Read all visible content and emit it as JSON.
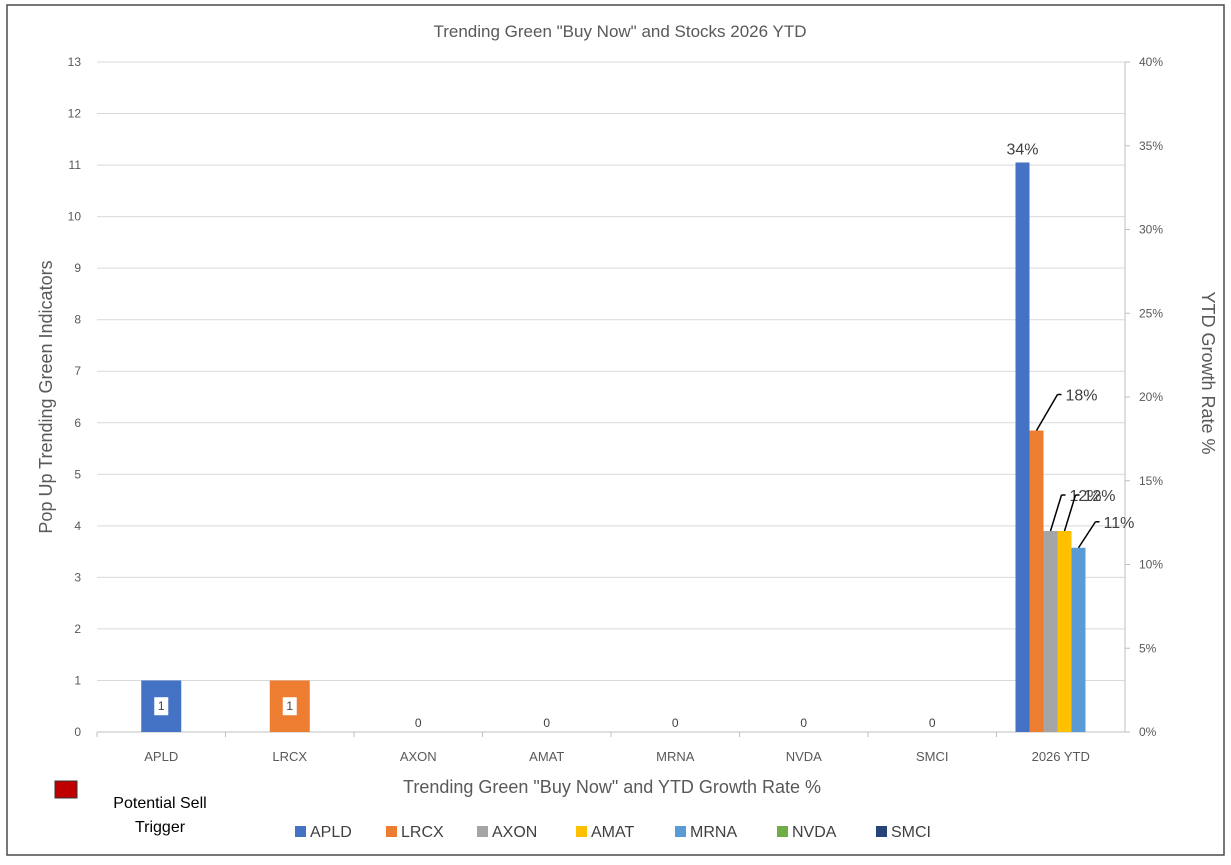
{
  "chart_data": {
    "type": "bar",
    "title": "Trending Green \"Buy Now\" and Stocks 2026 YTD",
    "xlabel": "Trending Green \"Buy Now\" and YTD Growth Rate %",
    "ylabel": "Pop Up Trending Green Indicators",
    "y2label": "YTD Growth Rate %",
    "ylim": [
      0,
      13
    ],
    "y2lim": [
      0,
      40
    ],
    "y_ticks": [
      "0",
      "1",
      "2",
      "3",
      "4",
      "5",
      "6",
      "7",
      "8",
      "9",
      "10",
      "11",
      "12",
      "13"
    ],
    "y2_ticks": [
      "0%",
      "5%",
      "10%",
      "15%",
      "20%",
      "25%",
      "30%",
      "35%",
      "40%"
    ],
    "grid": true,
    "categories": [
      "APLD",
      "LRCX",
      "AXON",
      "AMAT",
      "MRNA",
      "NVDA",
      "SMCI",
      "2026 YTD"
    ],
    "indicator_values": [
      1,
      1,
      0,
      0,
      0,
      0,
      0
    ],
    "indicator_labels": [
      "1",
      "1",
      "0",
      "0",
      "0",
      "0",
      "0"
    ],
    "series": [
      {
        "name": "APLD",
        "color": "#4472C4",
        "ytd_growth_pct": 34,
        "label": "34%"
      },
      {
        "name": "LRCX",
        "color": "#ED7D31",
        "ytd_growth_pct": 18,
        "label": "18%"
      },
      {
        "name": "AXON",
        "color": "#A5A5A5",
        "ytd_growth_pct": 12,
        "label": "12%"
      },
      {
        "name": "AMAT",
        "color": "#FFC000",
        "ytd_growth_pct": 12,
        "label": "12%"
      },
      {
        "name": "MRNA",
        "color": "#5B9BD5",
        "ytd_growth_pct": 11,
        "label": "11%"
      },
      {
        "name": "NVDA",
        "color": "#70AD47",
        "ytd_growth_pct": 0,
        "label": ""
      },
      {
        "name": "SMCI",
        "color": "#264478",
        "ytd_growth_pct": 0,
        "label": ""
      }
    ],
    "legend_position": "bottom",
    "sell_trigger": {
      "label_line1": "Potential Sell",
      "label_line2": "Trigger",
      "color": "#C00000"
    }
  }
}
